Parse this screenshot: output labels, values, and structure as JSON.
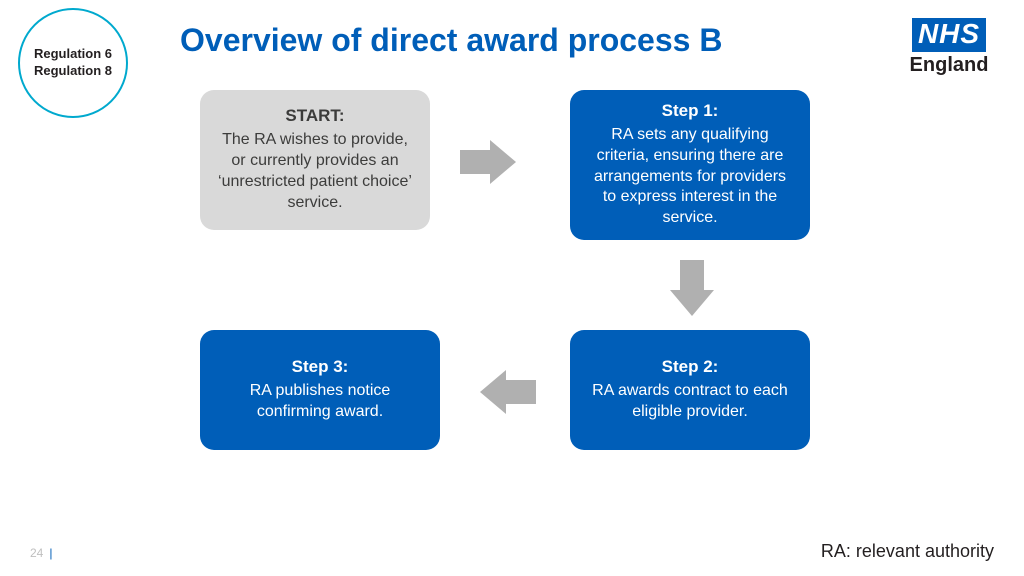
{
  "title": "Overview of direct award process B",
  "badge": {
    "line1": "Regulation 6",
    "line2": "Regulation 8"
  },
  "logo": {
    "top": "NHS",
    "bottom": "England"
  },
  "boxes": {
    "start": {
      "title": "START:",
      "body": "The RA wishes to provide, or currently provides an ‘unrestricted patient choice’ service.",
      "bg": "#d9d9d9",
      "fg": "#3c3c3b"
    },
    "step1": {
      "title": "Step 1:",
      "body": "RA sets any qualifying criteria, ensuring there are arrangements for providers to express interest in the service.",
      "bg": "#005eb8",
      "fg": "#ffffff"
    },
    "step2": {
      "title": "Step 2:",
      "body": "RA awards contract to each eligible provider.",
      "bg": "#005eb8",
      "fg": "#ffffff"
    },
    "step3": {
      "title": "Step 3:",
      "body": "RA publishes notice confirming award.",
      "bg": "#005eb8",
      "fg": "#ffffff"
    }
  },
  "page_number": "24",
  "footnote": "RA: relevant authority",
  "colors": {
    "title": "#005eb8",
    "circle_border": "#00a9ce",
    "arrow": "#b0b0b0",
    "nhs_blue": "#005eb8"
  },
  "flow": {
    "type": "flowchart",
    "nodes": [
      "start",
      "step1",
      "step2",
      "step3"
    ],
    "edges": [
      {
        "from": "start",
        "to": "step1",
        "dir": "right"
      },
      {
        "from": "step1",
        "to": "step2",
        "dir": "down"
      },
      {
        "from": "step2",
        "to": "step3",
        "dir": "left"
      }
    ]
  }
}
